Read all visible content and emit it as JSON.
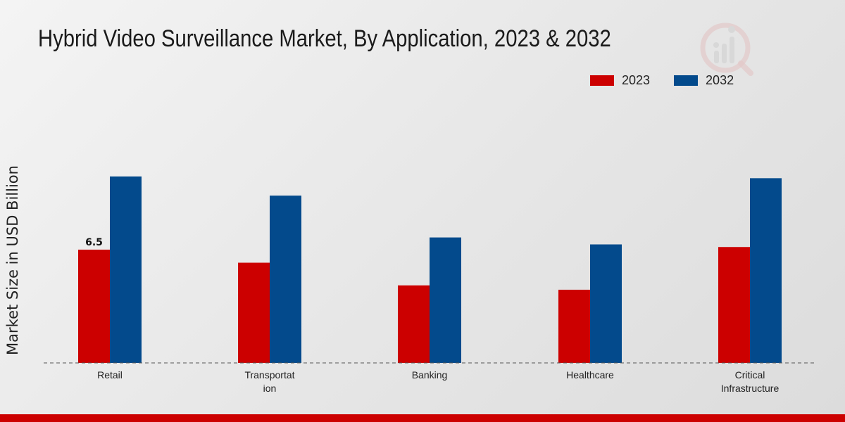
{
  "colors": {
    "s2023": "#cc0000",
    "s2032": "#034a8c",
    "accent": "#cc0000"
  },
  "logo_icon": "watermark-logo-icon",
  "chart_data": {
    "type": "bar",
    "title": "Hybrid Video Surveillance Market, By Application, 2023 & 2032",
    "xlabel": "",
    "ylabel": "Market Size in USD Billion",
    "categories": [
      {
        "line1": "Retail",
        "line2": ""
      },
      {
        "line1": "Transportat",
        "line2": "ion"
      },
      {
        "line1": "Banking",
        "line2": ""
      },
      {
        "line1": "Healthcare",
        "line2": ""
      },
      {
        "line1": "Critical",
        "line2": "Infrastructure"
      }
    ],
    "series": [
      {
        "name": "2023",
        "values": [
          6.5,
          5.75,
          4.45,
          4.2,
          6.65
        ]
      },
      {
        "name": "2032",
        "values": [
          10.7,
          9.6,
          7.2,
          6.8,
          10.6
        ]
      }
    ],
    "data_labels": [
      {
        "series": 0,
        "index": 0,
        "text": "6.5"
      }
    ],
    "ylim": [
      0,
      18
    ],
    "grid": false,
    "legend_position": "top-right"
  }
}
